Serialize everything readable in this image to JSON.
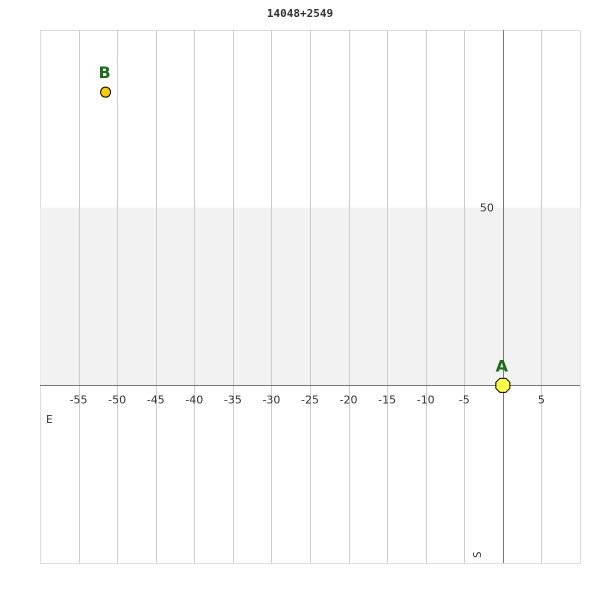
{
  "chart_data": {
    "type": "scatter",
    "title": "14048+2549",
    "xlim": [
      -60,
      10
    ],
    "ylim": [
      -50,
      100
    ],
    "x_ticks": [
      -55,
      -50,
      -45,
      -40,
      -35,
      -30,
      -25,
      -20,
      -15,
      -10,
      -5,
      5
    ],
    "y_ticks": [
      50
    ],
    "shaded_band": [
      0,
      50
    ],
    "grid": "vertical",
    "direction_labels": {
      "east": "E",
      "south": "S"
    },
    "points": [
      {
        "label": "A",
        "x": 0,
        "y": 0,
        "marker": "diamond",
        "color": "#ffff44"
      },
      {
        "label": "B",
        "x": -51.5,
        "y": 82.5,
        "marker": "circle",
        "color": "#ffcc00"
      }
    ],
    "label_color": "#1a6e1a"
  }
}
